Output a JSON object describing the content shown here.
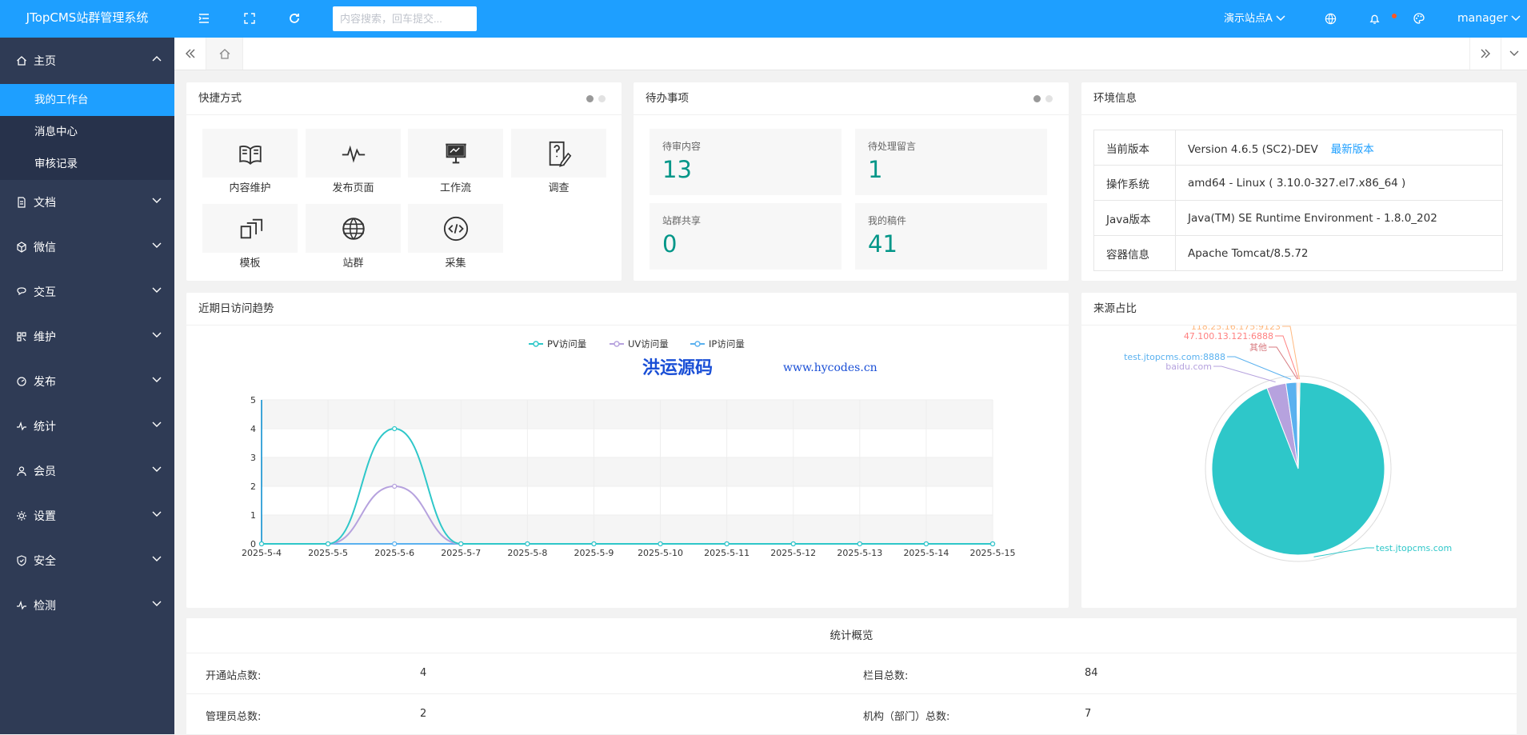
{
  "header": {
    "app_title": "JTopCMS站群管理系统",
    "search_placeholder": "内容搜索，回车提交...",
    "site_selector": "演示站点A",
    "user": "manager"
  },
  "sidebar": {
    "home": "主页",
    "home_sub": [
      "我的工作台",
      "消息中心",
      "审核记录"
    ],
    "items": [
      "文档",
      "微信",
      "交互",
      "维护",
      "发布",
      "统计",
      "会员",
      "设置",
      "安全",
      "检测"
    ]
  },
  "shortcuts": {
    "title": "快捷方式",
    "items": [
      "内容维护",
      "发布页面",
      "工作流",
      "调查",
      "模板",
      "站群",
      "采集"
    ]
  },
  "todo": {
    "title": "待办事项",
    "items": [
      {
        "label": "待审内容",
        "value": "13"
      },
      {
        "label": "待处理留言",
        "value": "1"
      },
      {
        "label": "站群共享",
        "value": "0"
      },
      {
        "label": "我的稿件",
        "value": "41"
      }
    ]
  },
  "env": {
    "title": "环境信息",
    "rows": [
      {
        "k": "当前版本",
        "v": "Version 4.6.5 (SC2)-DEV",
        "link": "最新版本"
      },
      {
        "k": "操作系统",
        "v": "amd64 - Linux ( 3.10.0-327.el7.x86_64 )"
      },
      {
        "k": "Java版本",
        "v": "Java(TM) SE Runtime Environment - 1.8.0_202"
      },
      {
        "k": "容器信息",
        "v": "Apache Tomcat/8.5.72"
      }
    ]
  },
  "trend": {
    "title": "近期日访问趋势"
  },
  "source": {
    "title": "来源占比"
  },
  "watermark": {
    "cn": "洪运源码",
    "url": "www.hycodes.cn"
  },
  "colors": {
    "primary": "#1e9fff",
    "sidebar": "#2f3b55",
    "pv": "#2ec7c9",
    "uv": "#b6a2de",
    "ip": "#5ab1ef",
    "teal": "#009688"
  },
  "chart_data": [
    {
      "type": "line",
      "x": [
        "2025-5-4",
        "2025-5-5",
        "2025-5-6",
        "2025-5-7",
        "2025-5-8",
        "2025-5-9",
        "2025-5-10",
        "2025-5-11",
        "2025-5-12",
        "2025-5-13",
        "2025-5-14",
        "2025-5-15"
      ],
      "series": [
        {
          "name": "PV访问量",
          "values": [
            0,
            0,
            4,
            0,
            0,
            0,
            0,
            0,
            0,
            0,
            0,
            0
          ]
        },
        {
          "name": "UV访问量",
          "values": [
            0,
            0,
            2,
            0,
            0,
            0,
            0,
            0,
            0,
            0,
            0,
            0
          ]
        },
        {
          "name": "IP访问量",
          "values": [
            0,
            0,
            0,
            0,
            0,
            0,
            0,
            0,
            0,
            0,
            0,
            0
          ]
        }
      ],
      "ylim": [
        0,
        5
      ],
      "yticks": [
        "0",
        "1",
        "2",
        "3",
        "4",
        "5"
      ],
      "legend": "top-center"
    },
    {
      "type": "pie",
      "slices": [
        {
          "label": "test.jtopcms.com",
          "value": 93.8,
          "color": "#2ec7c9"
        },
        {
          "label": "baidu.com",
          "value": 3.6,
          "color": "#b6a2de"
        },
        {
          "label": "test.jtopcms.com:8888",
          "value": 2.0,
          "color": "#5ab1ef"
        },
        {
          "label": "其他",
          "value": 0.2,
          "color": "#d87a80"
        },
        {
          "label": "47.100.13.121:6888",
          "value": 0.2,
          "color": "#ff8080"
        },
        {
          "label": "118.25.16.175:9123",
          "value": 0.2,
          "color": "#ffb980"
        }
      ]
    }
  ],
  "stats": {
    "title": "统计概览",
    "rows": [
      {
        "k1": "开通站点数:",
        "v1": "4",
        "k2": "栏目总数:",
        "v2": "84"
      },
      {
        "k1": "管理员总数:",
        "v1": "2",
        "k2": "机构（部门）总数:",
        "v2": "7"
      }
    ]
  }
}
